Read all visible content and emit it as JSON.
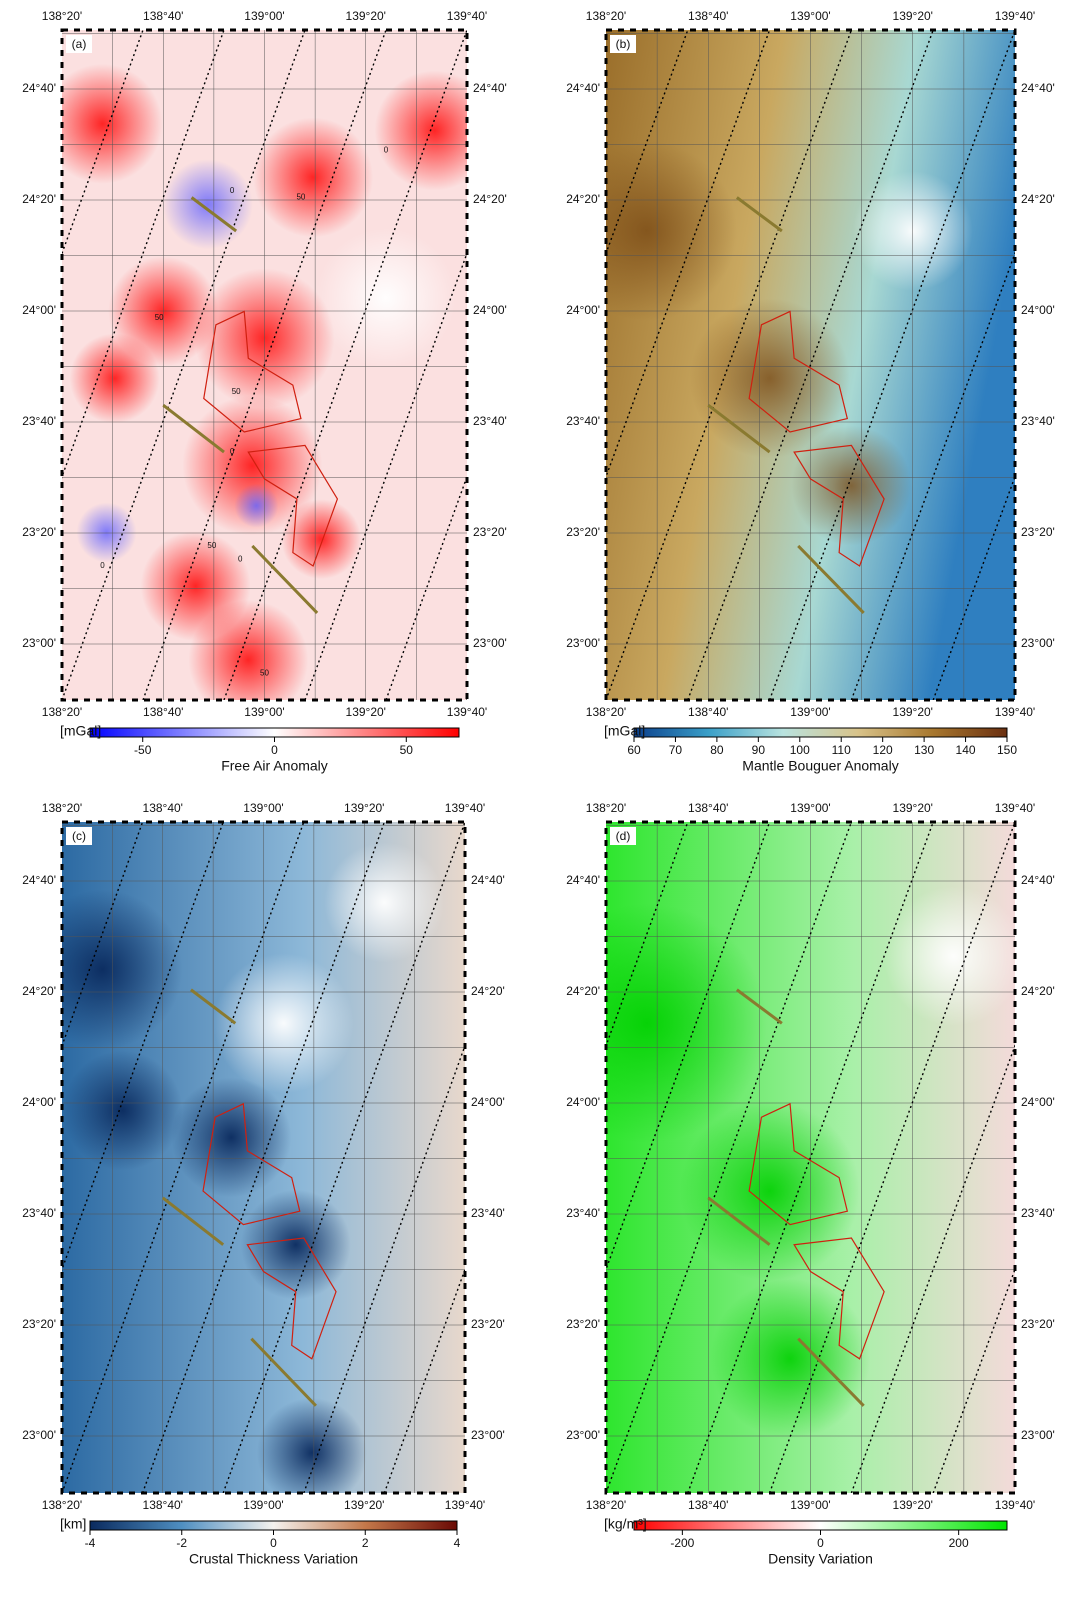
{
  "lon_labels": [
    "138°20'",
    "138°40'",
    "139°00'",
    "139°20'",
    "139°40'"
  ],
  "lat_labels": [
    "24°40'",
    "24°20'",
    "24°00'",
    "23°40'",
    "23°20'",
    "23°00'"
  ],
  "panels": [
    {
      "label": "(a)",
      "contour_labels": [
        "0",
        "50",
        "0",
        "50",
        "50",
        "0",
        "50",
        "0",
        "0",
        "50"
      ],
      "colorbar": {
        "unit": "[mGal]",
        "title": "Free Air Anomaly",
        "lim": [
          -70,
          70
        ],
        "ticks": [
          -50,
          0,
          50
        ],
        "colors": [
          "#0000ff",
          "#ffffff",
          "#ff0000"
        ]
      }
    },
    {
      "label": "(b)",
      "colorbar": {
        "unit": "[mGal]",
        "title": "Mantle Bouguer Anomaly",
        "lim": [
          60,
          150
        ],
        "ticks": [
          60,
          70,
          80,
          90,
          100,
          110,
          120,
          130,
          140,
          150
        ],
        "colors": [
          "#0b3f8c",
          "#3a9fc8",
          "#b9e3df",
          "#d8c38a",
          "#a8782f",
          "#6a2f10"
        ]
      }
    },
    {
      "label": "(c)",
      "colorbar": {
        "unit": "[km]",
        "title": "Crustal Thickness Variation",
        "lim": [
          -4,
          4
        ],
        "ticks": [
          -4,
          -2,
          0,
          2,
          4
        ],
        "colors": [
          "#0a2a5e",
          "#4f8fc1",
          "#f4f1ee",
          "#c4784a",
          "#6a0a05"
        ]
      }
    },
    {
      "label": "(d)",
      "colorbar": {
        "unit": "[kg/m³]",
        "title": "Density Variation",
        "lim": [
          -270,
          270
        ],
        "ticks": [
          -200,
          0,
          200
        ],
        "colors": [
          "#ff0000",
          "#ffffff",
          "#00e600"
        ]
      }
    }
  ]
}
